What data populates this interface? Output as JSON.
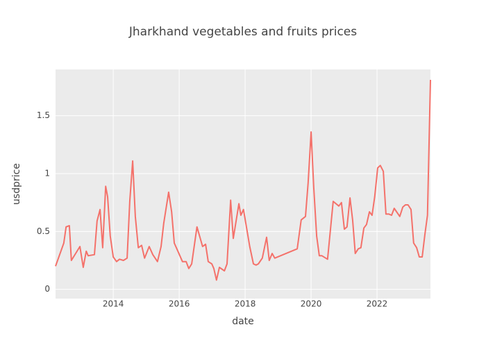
{
  "chart_data": {
    "type": "line",
    "title": "Jharkhand vegetables and fruits prices",
    "x_label": "date",
    "y_label": "usdprice",
    "color": "#f4716a",
    "grid": true,
    "x": [
      2012.25,
      2012.5,
      2012.57,
      2012.67,
      2012.73,
      2012.99,
      2013.09,
      2013.18,
      2013.24,
      2013.43,
      2013.51,
      2013.6,
      2013.68,
      2013.77,
      2013.83,
      2013.91,
      2014.0,
      2014.1,
      2014.19,
      2014.31,
      2014.42,
      2014.5,
      2014.59,
      2014.67,
      2014.76,
      2014.86,
      2014.95,
      2015.09,
      2015.2,
      2015.34,
      2015.45,
      2015.53,
      2015.68,
      2015.77,
      2015.85,
      2015.96,
      2016.1,
      2016.21,
      2016.29,
      2016.38,
      2016.54,
      2016.71,
      2016.8,
      2016.88,
      2016.99,
      2017.05,
      2017.13,
      2017.22,
      2017.37,
      2017.45,
      2017.56,
      2017.64,
      2017.81,
      2017.87,
      2017.95,
      2018.14,
      2018.25,
      2018.33,
      2018.4,
      2018.52,
      2018.65,
      2018.73,
      2018.82,
      2018.9,
      2019.58,
      2019.7,
      2019.83,
      2019.91,
      2020.0,
      2020.08,
      2020.17,
      2020.25,
      2020.33,
      2020.5,
      2020.67,
      2020.84,
      2020.92,
      2021.01,
      2021.09,
      2021.18,
      2021.26,
      2021.34,
      2021.43,
      2021.51,
      2021.6,
      2021.68,
      2021.77,
      2021.85,
      2021.93,
      2022.02,
      2022.1,
      2022.19,
      2022.27,
      2022.36,
      2022.44,
      2022.52,
      2022.69,
      2022.78,
      2022.86,
      2022.94,
      2023.03,
      2023.11,
      2023.2,
      2023.28,
      2023.37,
      2023.45,
      2023.53,
      2023.62
    ],
    "values": [
      0.2,
      0.4,
      0.54,
      0.55,
      0.25,
      0.37,
      0.19,
      0.33,
      0.29,
      0.3,
      0.59,
      0.69,
      0.36,
      0.89,
      0.8,
      0.46,
      0.28,
      0.24,
      0.26,
      0.25,
      0.27,
      0.76,
      1.11,
      0.63,
      0.36,
      0.38,
      0.27,
      0.37,
      0.3,
      0.24,
      0.37,
      0.57,
      0.84,
      0.67,
      0.4,
      0.33,
      0.24,
      0.24,
      0.18,
      0.22,
      0.54,
      0.37,
      0.39,
      0.24,
      0.22,
      0.18,
      0.08,
      0.19,
      0.16,
      0.22,
      0.77,
      0.44,
      0.74,
      0.64,
      0.69,
      0.37,
      0.22,
      0.21,
      0.22,
      0.27,
      0.45,
      0.25,
      0.31,
      0.27,
      0.35,
      0.6,
      0.63,
      0.92,
      1.36,
      0.88,
      0.46,
      0.29,
      0.29,
      0.26,
      0.76,
      0.72,
      0.75,
      0.52,
      0.54,
      0.79,
      0.6,
      0.31,
      0.35,
      0.36,
      0.53,
      0.56,
      0.67,
      0.64,
      0.8,
      1.05,
      1.07,
      1.02,
      0.65,
      0.65,
      0.64,
      0.7,
      0.63,
      0.71,
      0.73,
      0.73,
      0.69,
      0.4,
      0.36,
      0.28,
      0.28,
      0.47,
      0.64,
      1.81
    ],
    "xlim": [
      2012.25,
      2023.62
    ],
    "xticks": [
      2014,
      2016,
      2018,
      2020,
      2022
    ],
    "ylim": [
      -0.08,
      1.9
    ],
    "yticks": [
      0,
      0.5,
      1,
      1.5
    ]
  }
}
